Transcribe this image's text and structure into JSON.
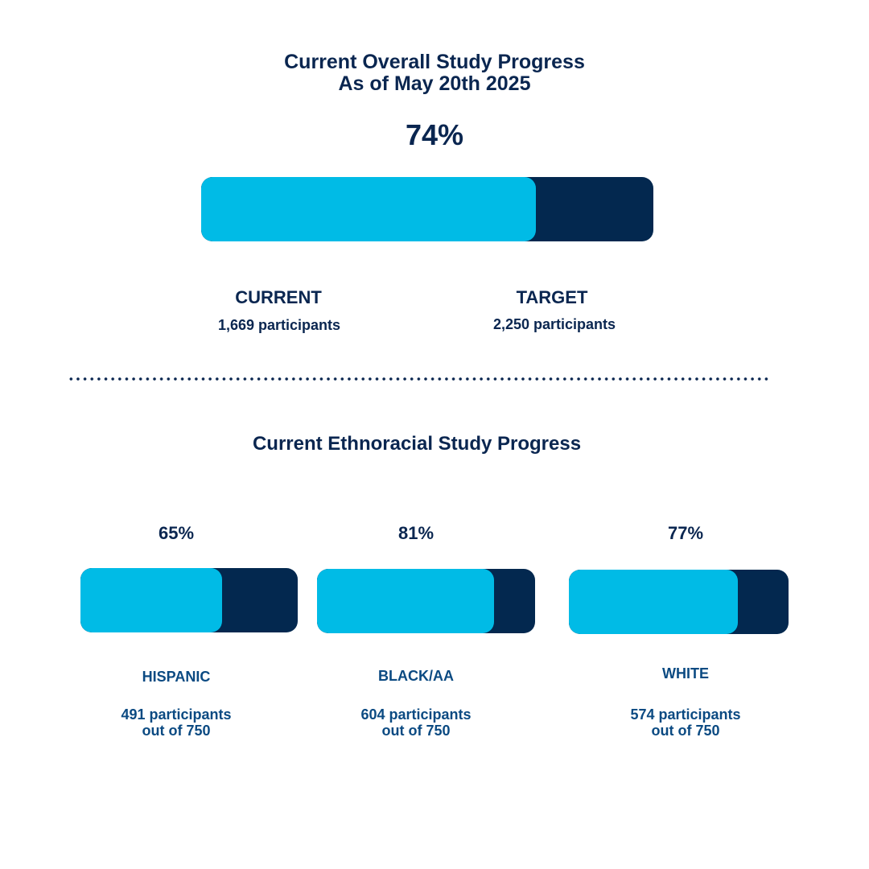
{
  "overall": {
    "title_line1": "Current Overall Study Progress",
    "title_line2": "As of May 20th 2025",
    "percent_label": "74%",
    "progress": 0.74,
    "current_label": "CURRENT",
    "current_value": "1,669 participants",
    "target_label": "TARGET",
    "target_value": "2,250 participants"
  },
  "ethnoracial": {
    "title": "Current Ethnoracial Study Progress"
  },
  "colors": {
    "fill": "#00bbe6",
    "track": "#03284f",
    "text": "#0a2650",
    "label": "#0b4a82"
  },
  "chart_data": {
    "type": "bar",
    "title": "Current Ethnoracial Study Progress",
    "categories": [
      "HISPANIC",
      "BLACK/AA",
      "WHITE"
    ],
    "values": [
      65,
      81,
      77
    ],
    "percent_labels": [
      "65%",
      "81%",
      "77%"
    ],
    "participants": [
      491,
      604,
      574
    ],
    "target": 750,
    "detail_line1": [
      "491 participants",
      "604 participants",
      "574 participants"
    ],
    "detail_line2": [
      "out of 750",
      "out of 750",
      "out of 750"
    ],
    "ylim": [
      0,
      100
    ]
  }
}
